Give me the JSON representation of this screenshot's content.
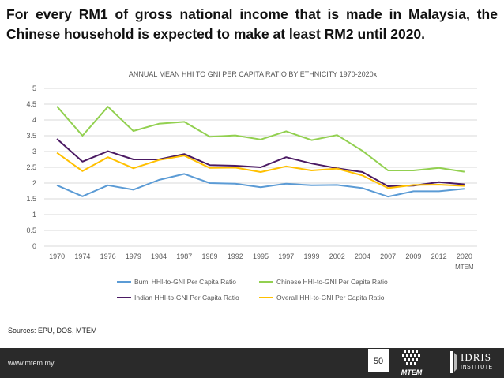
{
  "headline": "For every RM1 of gross national income that is made in Malaysia, the Chinese household is expected to make at least RM2 until 2020.",
  "sources": "Sources: EPU, DOS, MTEM",
  "footer": {
    "url": "www.mtem.my",
    "page_number": "50",
    "logo_mtem_text": "MTEM",
    "logo_idris_name": "IDRIS",
    "logo_idris_sub": "INSTITUTE"
  },
  "chart_data": {
    "type": "line",
    "title": "ANNUAL MEAN HHI TO GNI PER CAPITA RATIO BY ETHNICITY 1970-2020x",
    "categories": [
      "1970",
      "1974",
      "1976",
      "1979",
      "1984",
      "1987",
      "1989",
      "1992",
      "1995",
      "1997",
      "1999",
      "2002",
      "2004",
      "2007",
      "2009",
      "2012",
      "2020"
    ],
    "category_sublabels": {
      "2020": "MTEM"
    },
    "ylim": [
      0,
      5
    ],
    "yticks": [
      "0",
      "0.5",
      "1",
      "1.5",
      "2",
      "2.5",
      "3",
      "3.5",
      "4",
      "4.5",
      "5"
    ],
    "grid": true,
    "legend_position": "bottom",
    "series": [
      {
        "name": "Bumi HHI-to-GNI Per Capita Ratio",
        "color": "#5b9bd5",
        "values": [
          1.93,
          1.58,
          1.93,
          1.79,
          2.1,
          2.29,
          2.0,
          1.98,
          1.87,
          1.98,
          1.93,
          1.94,
          1.84,
          1.57,
          1.74,
          1.74,
          1.82
        ]
      },
      {
        "name": "Chinese HHI-to-GNI Per Capita Ratio",
        "color": "#92d050",
        "values": [
          4.43,
          3.5,
          4.42,
          3.65,
          3.88,
          3.94,
          3.47,
          3.51,
          3.38,
          3.64,
          3.36,
          3.52,
          3.02,
          2.4,
          2.4,
          2.48,
          2.36
        ]
      },
      {
        "name": "Indian HHI-to-GNI Per Capita Ratio",
        "color": "#4b1a63",
        "values": [
          3.4,
          2.68,
          3.01,
          2.75,
          2.75,
          2.92,
          2.57,
          2.55,
          2.5,
          2.82,
          2.62,
          2.47,
          2.35,
          1.9,
          1.92,
          2.03,
          1.96
        ]
      },
      {
        "name": "Overall HHI-to-GNI Per Capita Ratio",
        "color": "#ffc000",
        "values": [
          2.96,
          2.38,
          2.82,
          2.47,
          2.73,
          2.87,
          2.48,
          2.49,
          2.35,
          2.53,
          2.4,
          2.46,
          2.24,
          1.84,
          1.94,
          1.95,
          1.91
        ]
      }
    ]
  }
}
